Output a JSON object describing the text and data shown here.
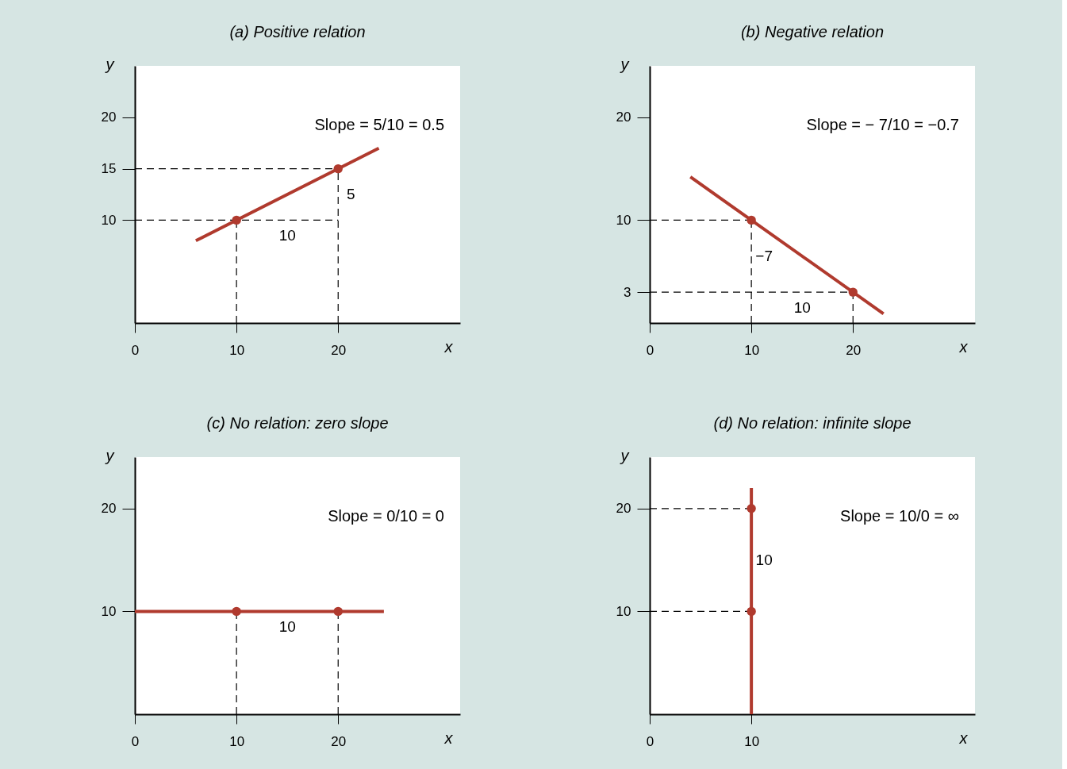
{
  "chart_data": [
    {
      "type": "line",
      "title": "(a) Positive relation",
      "xlabel": "x",
      "ylabel": "y",
      "xlim": [
        0,
        32
      ],
      "ylim": [
        0,
        25
      ],
      "xticks": [
        0,
        10,
        20
      ],
      "yticks": [
        10,
        15,
        20
      ],
      "grid": false,
      "series": [
        {
          "color": "#000000",
          "line_style": "dashed",
          "x": [
            0,
            20
          ],
          "values": [
            15,
            15
          ]
        },
        {
          "color": "#000000",
          "line_style": "dashed",
          "x": [
            0,
            20
          ],
          "values": [
            10,
            10
          ]
        },
        {
          "color": "#000000",
          "line_style": "dashed",
          "x": [
            10,
            10
          ],
          "values": [
            0,
            10
          ]
        },
        {
          "color": "#000000",
          "line_style": "dashed",
          "x": [
            20,
            20
          ],
          "values": [
            0,
            15
          ]
        },
        {
          "color": "#b03a2e",
          "line_style": "solid",
          "x": [
            6,
            24
          ],
          "values": [
            8,
            17
          ]
        },
        {
          "type": "scatter",
          "color": "#b03a2e",
          "marker": "circle",
          "x": [
            10,
            20
          ],
          "values": [
            10,
            15
          ]
        }
      ],
      "annotations": [
        "Slope = 5/10 = 0.5",
        {
          "text": "5",
          "x": 20,
          "y": 12.5
        },
        {
          "text": "10",
          "x": 15,
          "y": 10
        }
      ]
    },
    {
      "type": "line",
      "title": "(b) Negative relation",
      "xlabel": "x",
      "ylabel": "y",
      "xlim": [
        0,
        32
      ],
      "ylim": [
        0,
        25
      ],
      "xticks": [
        0,
        10,
        20
      ],
      "yticks": [
        3,
        10,
        20
      ],
      "grid": false,
      "series": [
        {
          "color": "#000000",
          "line_style": "dashed",
          "x": [
            0,
            10
          ],
          "values": [
            10,
            10
          ]
        },
        {
          "color": "#000000",
          "line_style": "dashed",
          "x": [
            0,
            20
          ],
          "values": [
            3,
            3
          ]
        },
        {
          "color": "#000000",
          "line_style": "dashed",
          "x": [
            10,
            10
          ],
          "values": [
            0,
            10
          ]
        },
        {
          "color": "#000000",
          "line_style": "dashed",
          "x": [
            20,
            20
          ],
          "values": [
            0,
            3
          ]
        },
        {
          "color": "#b03a2e",
          "line_style": "solid",
          "x": [
            4,
            23
          ],
          "values": [
            14.2,
            0.9
          ]
        },
        {
          "type": "scatter",
          "color": "#b03a2e",
          "marker": "circle",
          "x": [
            10,
            20
          ],
          "values": [
            10,
            3
          ]
        }
      ],
      "annotations": [
        "Slope = − 7/10 = −0.7",
        {
          "text": "−7",
          "x": 10,
          "y": 6.5
        },
        {
          "text": "10",
          "x": 15,
          "y": 3
        }
      ]
    },
    {
      "type": "line",
      "title": "(c) No relation: zero slope",
      "xlabel": "x",
      "ylabel": "y",
      "xlim": [
        0,
        32
      ],
      "ylim": [
        0,
        25
      ],
      "xticks": [
        0,
        10,
        20
      ],
      "yticks": [
        10,
        20
      ],
      "grid": false,
      "series": [
        {
          "color": "#000000",
          "line_style": "dashed",
          "x": [
            10,
            10
          ],
          "values": [
            0,
            10
          ]
        },
        {
          "color": "#000000",
          "line_style": "dashed",
          "x": [
            20,
            20
          ],
          "values": [
            0,
            10
          ]
        },
        {
          "color": "#b03a2e",
          "line_style": "solid",
          "x": [
            0,
            24.5
          ],
          "values": [
            10,
            10
          ]
        },
        {
          "type": "scatter",
          "color": "#b03a2e",
          "marker": "circle",
          "x": [
            10,
            20
          ],
          "values": [
            10,
            10
          ]
        }
      ],
      "annotations": [
        "Slope = 0/10 = 0",
        {
          "text": "10",
          "x": 15,
          "y": 10
        }
      ]
    },
    {
      "type": "line",
      "title": "(d) No relation: infinite slope",
      "xlabel": "x",
      "ylabel": "y",
      "xlim": [
        0,
        32
      ],
      "ylim": [
        0,
        25
      ],
      "xticks": [
        0,
        10
      ],
      "yticks": [
        10,
        20
      ],
      "grid": false,
      "series": [
        {
          "color": "#000000",
          "line_style": "dashed",
          "x": [
            0,
            10
          ],
          "values": [
            20,
            20
          ]
        },
        {
          "color": "#000000",
          "line_style": "dashed",
          "x": [
            0,
            10
          ],
          "values": [
            10,
            10
          ]
        },
        {
          "color": "#b03a2e",
          "line_style": "solid",
          "x": [
            10,
            10
          ],
          "values": [
            0,
            22
          ]
        },
        {
          "type": "scatter",
          "color": "#b03a2e",
          "marker": "circle",
          "x": [
            10,
            10
          ],
          "values": [
            10,
            20
          ]
        }
      ],
      "annotations": [
        "Slope = 10/0 = ∞",
        {
          "text": "10",
          "x": 10,
          "y": 15
        }
      ]
    }
  ]
}
